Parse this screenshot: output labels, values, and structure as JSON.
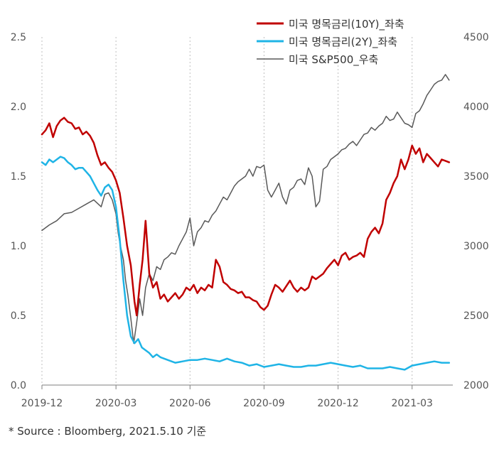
{
  "colors": {
    "us10y": "#c00000",
    "us2y": "#1fb4e6",
    "sp500": "#595959",
    "grid": "#bfbfbf",
    "axis": "#7f7f7f"
  },
  "source_note": "* Source : Bloomberg, 2021.5.10 기준",
  "chart_data": {
    "type": "line",
    "x_tick_labels": [
      "2019-12",
      "2020-03",
      "2020-06",
      "2020-09",
      "2020-12",
      "2021-03"
    ],
    "x_range": [
      "2019-12",
      "2021-05-10"
    ],
    "grid": "vertical dotted lines at x ticks",
    "legend_position": "top-right",
    "y_left": {
      "range": [
        0,
        2.5
      ],
      "ticks": [
        "0.0",
        "0.5",
        "1.0",
        "1.5",
        "2.0",
        "2.5"
      ]
    },
    "y_right": {
      "range": [
        2000,
        4500
      ],
      "ticks": [
        "2000",
        "2500",
        "3000",
        "3500",
        "4000",
        "4500"
      ]
    },
    "series": [
      {
        "name": "미국 명목금리(10Y)_좌축",
        "axis": "left",
        "color_key": "us10y",
        "values": [
          [
            0,
            1.8
          ],
          [
            0.05,
            1.83
          ],
          [
            0.1,
            1.88
          ],
          [
            0.15,
            1.78
          ],
          [
            0.2,
            1.86
          ],
          [
            0.25,
            1.9
          ],
          [
            0.3,
            1.92
          ],
          [
            0.35,
            1.89
          ],
          [
            0.4,
            1.88
          ],
          [
            0.45,
            1.84
          ],
          [
            0.5,
            1.85
          ],
          [
            0.55,
            1.8
          ],
          [
            0.6,
            1.82
          ],
          [
            0.65,
            1.79
          ],
          [
            0.7,
            1.74
          ],
          [
            0.75,
            1.65
          ],
          [
            0.8,
            1.58
          ],
          [
            0.85,
            1.6
          ],
          [
            0.9,
            1.56
          ],
          [
            0.95,
            1.53
          ],
          [
            1.0,
            1.47
          ],
          [
            1.05,
            1.38
          ],
          [
            1.1,
            1.2
          ],
          [
            1.15,
            1.0
          ],
          [
            1.2,
            0.86
          ],
          [
            1.25,
            0.6
          ],
          [
            1.28,
            0.5
          ],
          [
            1.32,
            0.72
          ],
          [
            1.36,
            0.9
          ],
          [
            1.4,
            1.18
          ],
          [
            1.45,
            0.8
          ],
          [
            1.5,
            0.7
          ],
          [
            1.55,
            0.74
          ],
          [
            1.6,
            0.62
          ],
          [
            1.65,
            0.65
          ],
          [
            1.7,
            0.6
          ],
          [
            1.75,
            0.63
          ],
          [
            1.8,
            0.66
          ],
          [
            1.85,
            0.62
          ],
          [
            1.9,
            0.65
          ],
          [
            1.95,
            0.7
          ],
          [
            2.0,
            0.68
          ],
          [
            2.05,
            0.72
          ],
          [
            2.1,
            0.66
          ],
          [
            2.15,
            0.7
          ],
          [
            2.2,
            0.68
          ],
          [
            2.25,
            0.72
          ],
          [
            2.3,
            0.7
          ],
          [
            2.35,
            0.9
          ],
          [
            2.4,
            0.85
          ],
          [
            2.45,
            0.74
          ],
          [
            2.5,
            0.72
          ],
          [
            2.55,
            0.69
          ],
          [
            2.6,
            0.68
          ],
          [
            2.65,
            0.66
          ],
          [
            2.7,
            0.67
          ],
          [
            2.75,
            0.63
          ],
          [
            2.8,
            0.63
          ],
          [
            2.85,
            0.61
          ],
          [
            2.9,
            0.6
          ],
          [
            2.95,
            0.56
          ],
          [
            3.0,
            0.54
          ],
          [
            3.05,
            0.57
          ],
          [
            3.1,
            0.65
          ],
          [
            3.15,
            0.72
          ],
          [
            3.2,
            0.7
          ],
          [
            3.25,
            0.67
          ],
          [
            3.3,
            0.71
          ],
          [
            3.35,
            0.75
          ],
          [
            3.4,
            0.7
          ],
          [
            3.45,
            0.67
          ],
          [
            3.5,
            0.7
          ],
          [
            3.55,
            0.68
          ],
          [
            3.6,
            0.7
          ],
          [
            3.65,
            0.78
          ],
          [
            3.7,
            0.76
          ],
          [
            3.75,
            0.78
          ],
          [
            3.8,
            0.8
          ],
          [
            3.85,
            0.84
          ],
          [
            3.9,
            0.87
          ],
          [
            3.95,
            0.9
          ],
          [
            4.0,
            0.86
          ],
          [
            4.05,
            0.93
          ],
          [
            4.1,
            0.95
          ],
          [
            4.15,
            0.9
          ],
          [
            4.2,
            0.92
          ],
          [
            4.25,
            0.93
          ],
          [
            4.3,
            0.95
          ],
          [
            4.35,
            0.92
          ],
          [
            4.4,
            1.05
          ],
          [
            4.45,
            1.1
          ],
          [
            4.5,
            1.13
          ],
          [
            4.55,
            1.09
          ],
          [
            4.6,
            1.16
          ],
          [
            4.65,
            1.33
          ],
          [
            4.7,
            1.38
          ],
          [
            4.75,
            1.45
          ],
          [
            4.8,
            1.5
          ],
          [
            4.85,
            1.62
          ],
          [
            4.9,
            1.55
          ],
          [
            4.95,
            1.62
          ],
          [
            5.0,
            1.72
          ],
          [
            5.05,
            1.66
          ],
          [
            5.1,
            1.7
          ],
          [
            5.15,
            1.6
          ],
          [
            5.2,
            1.66
          ],
          [
            5.25,
            1.63
          ],
          [
            5.3,
            1.6
          ],
          [
            5.35,
            1.57
          ],
          [
            5.4,
            1.62
          ],
          [
            5.45,
            1.61
          ],
          [
            5.5,
            1.6
          ]
        ]
      },
      {
        "name": "미국 명목금리(2Y)_좌축",
        "axis": "left",
        "color_key": "us2y",
        "values": [
          [
            0,
            1.6
          ],
          [
            0.05,
            1.58
          ],
          [
            0.1,
            1.62
          ],
          [
            0.15,
            1.6
          ],
          [
            0.2,
            1.62
          ],
          [
            0.25,
            1.64
          ],
          [
            0.3,
            1.63
          ],
          [
            0.35,
            1.6
          ],
          [
            0.4,
            1.58
          ],
          [
            0.45,
            1.55
          ],
          [
            0.5,
            1.56
          ],
          [
            0.55,
            1.56
          ],
          [
            0.6,
            1.53
          ],
          [
            0.65,
            1.5
          ],
          [
            0.7,
            1.45
          ],
          [
            0.75,
            1.4
          ],
          [
            0.8,
            1.36
          ],
          [
            0.85,
            1.42
          ],
          [
            0.9,
            1.44
          ],
          [
            0.95,
            1.4
          ],
          [
            1.0,
            1.28
          ],
          [
            1.05,
            1.05
          ],
          [
            1.1,
            0.75
          ],
          [
            1.15,
            0.5
          ],
          [
            1.2,
            0.35
          ],
          [
            1.25,
            0.3
          ],
          [
            1.3,
            0.33
          ],
          [
            1.35,
            0.27
          ],
          [
            1.4,
            0.25
          ],
          [
            1.45,
            0.23
          ],
          [
            1.5,
            0.2
          ],
          [
            1.55,
            0.22
          ],
          [
            1.6,
            0.2
          ],
          [
            1.7,
            0.18
          ],
          [
            1.8,
            0.16
          ],
          [
            1.9,
            0.17
          ],
          [
            2.0,
            0.18
          ],
          [
            2.1,
            0.18
          ],
          [
            2.2,
            0.19
          ],
          [
            2.3,
            0.18
          ],
          [
            2.4,
            0.17
          ],
          [
            2.5,
            0.19
          ],
          [
            2.6,
            0.17
          ],
          [
            2.7,
            0.16
          ],
          [
            2.8,
            0.14
          ],
          [
            2.9,
            0.15
          ],
          [
            3.0,
            0.13
          ],
          [
            3.1,
            0.14
          ],
          [
            3.2,
            0.15
          ],
          [
            3.3,
            0.14
          ],
          [
            3.4,
            0.13
          ],
          [
            3.5,
            0.13
          ],
          [
            3.6,
            0.14
          ],
          [
            3.7,
            0.14
          ],
          [
            3.8,
            0.15
          ],
          [
            3.9,
            0.16
          ],
          [
            4.0,
            0.15
          ],
          [
            4.1,
            0.14
          ],
          [
            4.2,
            0.13
          ],
          [
            4.3,
            0.14
          ],
          [
            4.4,
            0.12
          ],
          [
            4.5,
            0.12
          ],
          [
            4.6,
            0.12
          ],
          [
            4.7,
            0.13
          ],
          [
            4.8,
            0.12
          ],
          [
            4.9,
            0.11
          ],
          [
            5.0,
            0.14
          ],
          [
            5.1,
            0.15
          ],
          [
            5.2,
            0.16
          ],
          [
            5.3,
            0.17
          ],
          [
            5.4,
            0.16
          ],
          [
            5.5,
            0.16
          ]
        ]
      },
      {
        "name": "미국 S&P500_우축",
        "axis": "right",
        "color_key": "sp500",
        "values": [
          [
            0,
            3110
          ],
          [
            0.1,
            3150
          ],
          [
            0.2,
            3180
          ],
          [
            0.3,
            3230
          ],
          [
            0.4,
            3240
          ],
          [
            0.5,
            3270
          ],
          [
            0.6,
            3300
          ],
          [
            0.7,
            3330
          ],
          [
            0.8,
            3280
          ],
          [
            0.85,
            3370
          ],
          [
            0.9,
            3380
          ],
          [
            0.95,
            3330
          ],
          [
            1.0,
            3230
          ],
          [
            1.03,
            3090
          ],
          [
            1.06,
            3000
          ],
          [
            1.1,
            2900
          ],
          [
            1.13,
            2750
          ],
          [
            1.16,
            2650
          ],
          [
            1.2,
            2480
          ],
          [
            1.24,
            2300
          ],
          [
            1.28,
            2450
          ],
          [
            1.32,
            2620
          ],
          [
            1.36,
            2500
          ],
          [
            1.4,
            2700
          ],
          [
            1.45,
            2800
          ],
          [
            1.5,
            2750
          ],
          [
            1.55,
            2850
          ],
          [
            1.6,
            2830
          ],
          [
            1.65,
            2900
          ],
          [
            1.7,
            2920
          ],
          [
            1.75,
            2950
          ],
          [
            1.8,
            2940
          ],
          [
            1.85,
            3000
          ],
          [
            1.9,
            3050
          ],
          [
            1.95,
            3100
          ],
          [
            2.0,
            3200
          ],
          [
            2.05,
            3000
          ],
          [
            2.1,
            3100
          ],
          [
            2.15,
            3130
          ],
          [
            2.2,
            3180
          ],
          [
            2.25,
            3170
          ],
          [
            2.3,
            3220
          ],
          [
            2.35,
            3250
          ],
          [
            2.4,
            3300
          ],
          [
            2.45,
            3350
          ],
          [
            2.5,
            3330
          ],
          [
            2.55,
            3380
          ],
          [
            2.6,
            3430
          ],
          [
            2.65,
            3460
          ],
          [
            2.7,
            3480
          ],
          [
            2.75,
            3500
          ],
          [
            2.8,
            3550
          ],
          [
            2.85,
            3500
          ],
          [
            2.9,
            3570
          ],
          [
            2.95,
            3560
          ],
          [
            3.0,
            3580
          ],
          [
            3.05,
            3400
          ],
          [
            3.1,
            3350
          ],
          [
            3.15,
            3400
          ],
          [
            3.2,
            3450
          ],
          [
            3.25,
            3350
          ],
          [
            3.3,
            3300
          ],
          [
            3.35,
            3400
          ],
          [
            3.4,
            3420
          ],
          [
            3.45,
            3470
          ],
          [
            3.5,
            3480
          ],
          [
            3.55,
            3440
          ],
          [
            3.6,
            3560
          ],
          [
            3.65,
            3500
          ],
          [
            3.7,
            3280
          ],
          [
            3.75,
            3320
          ],
          [
            3.8,
            3550
          ],
          [
            3.85,
            3570
          ],
          [
            3.9,
            3620
          ],
          [
            3.95,
            3640
          ],
          [
            4.0,
            3660
          ],
          [
            4.05,
            3690
          ],
          [
            4.1,
            3700
          ],
          [
            4.15,
            3730
          ],
          [
            4.2,
            3750
          ],
          [
            4.25,
            3720
          ],
          [
            4.3,
            3760
          ],
          [
            4.35,
            3800
          ],
          [
            4.4,
            3810
          ],
          [
            4.45,
            3850
          ],
          [
            4.5,
            3830
          ],
          [
            4.55,
            3860
          ],
          [
            4.6,
            3880
          ],
          [
            4.65,
            3930
          ],
          [
            4.7,
            3900
          ],
          [
            4.75,
            3910
          ],
          [
            4.8,
            3960
          ],
          [
            4.85,
            3920
          ],
          [
            4.9,
            3880
          ],
          [
            4.95,
            3870
          ],
          [
            5.0,
            3850
          ],
          [
            5.05,
            3950
          ],
          [
            5.1,
            3970
          ],
          [
            5.15,
            4020
          ],
          [
            5.2,
            4080
          ],
          [
            5.25,
            4120
          ],
          [
            5.3,
            4160
          ],
          [
            5.35,
            4180
          ],
          [
            5.4,
            4190
          ],
          [
            5.45,
            4230
          ],
          [
            5.5,
            4190
          ]
        ]
      }
    ]
  }
}
